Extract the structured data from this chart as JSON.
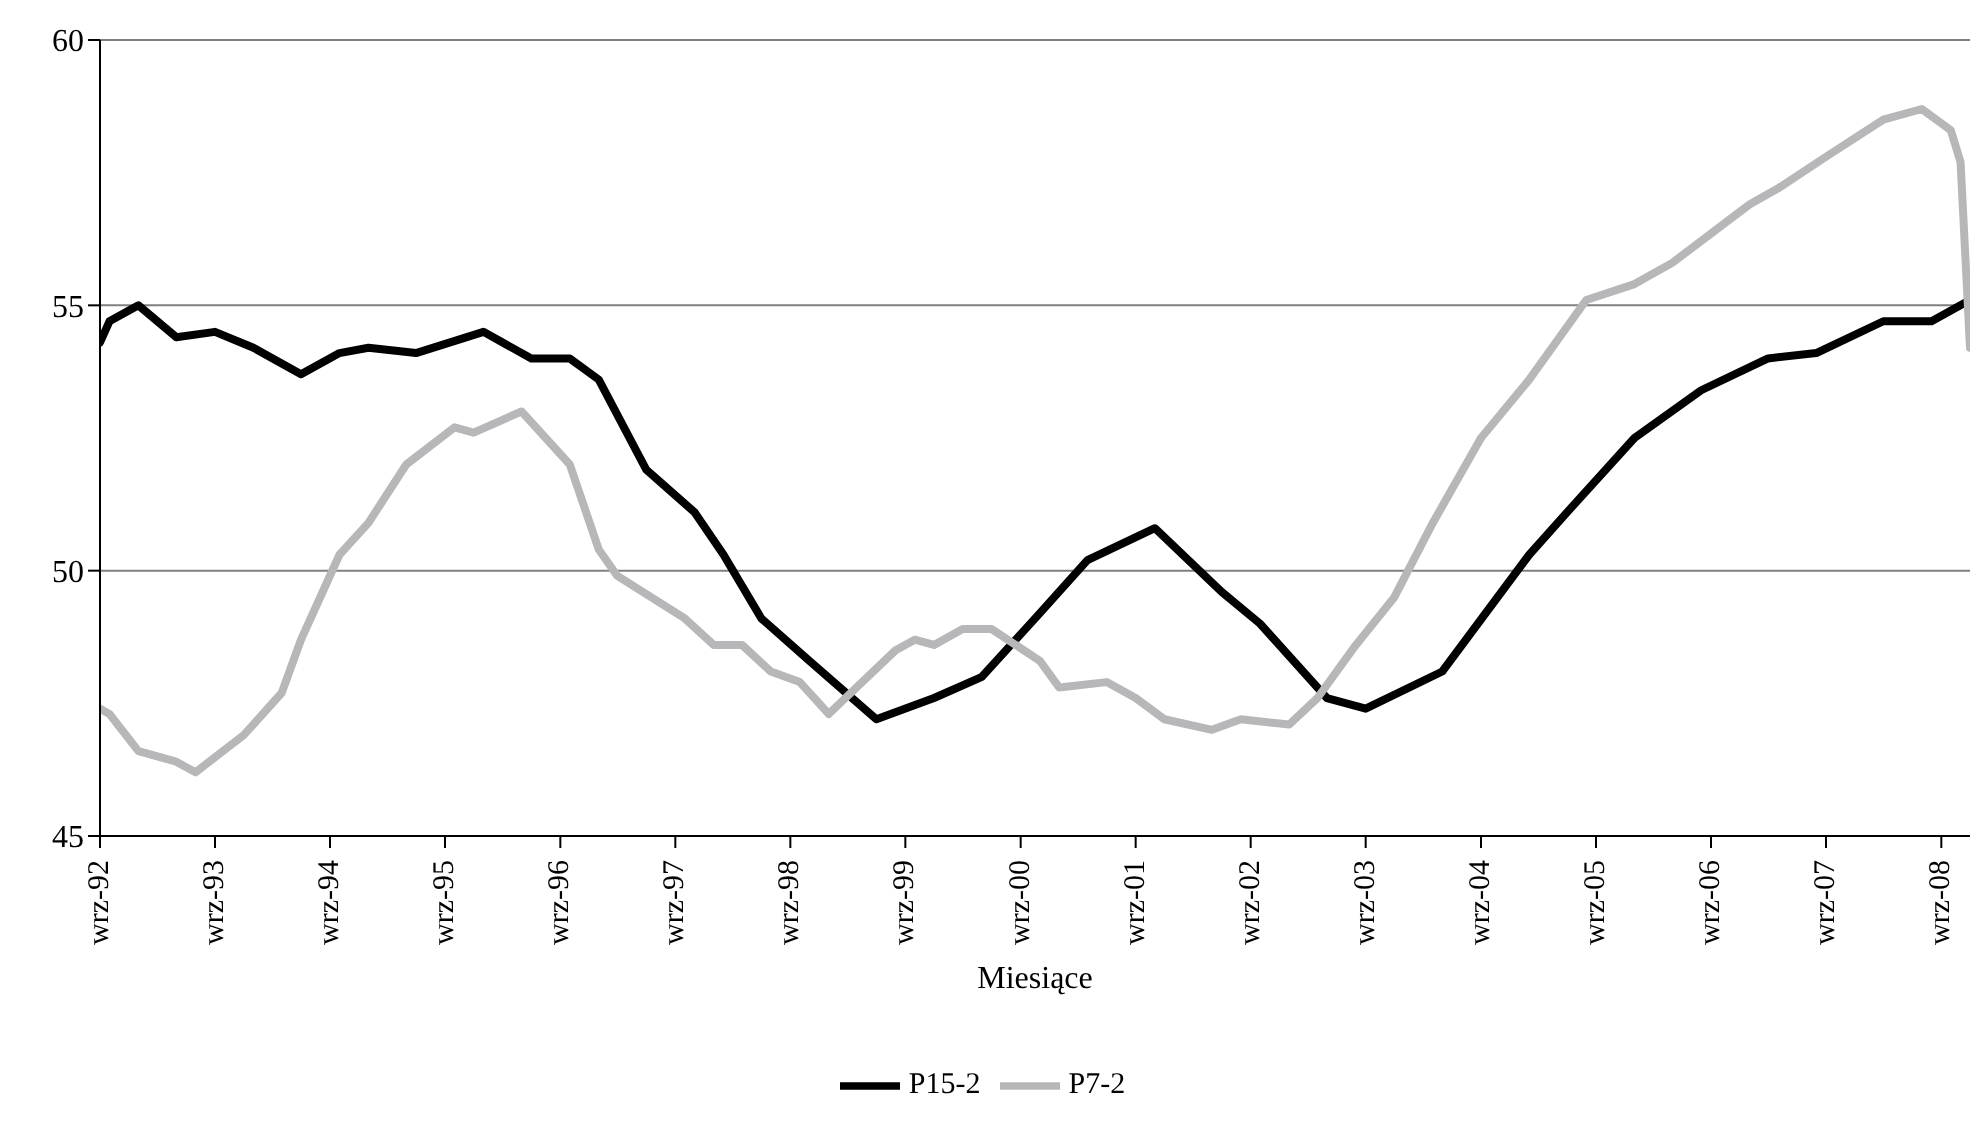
{
  "chart_data": {
    "type": "line",
    "xlabel": "Miesiące",
    "xlim": [
      "1992-09",
      "2008-12"
    ],
    "xticks": [
      {
        "value": "1992-09",
        "label": "wrz-92"
      },
      {
        "value": "1993-09",
        "label": "wrz-93"
      },
      {
        "value": "1994-09",
        "label": "wrz-94"
      },
      {
        "value": "1995-09",
        "label": "wrz-95"
      },
      {
        "value": "1996-09",
        "label": "wrz-96"
      },
      {
        "value": "1997-09",
        "label": "wrz-97"
      },
      {
        "value": "1998-09",
        "label": "wrz-98"
      },
      {
        "value": "1999-09",
        "label": "wrz-99"
      },
      {
        "value": "2000-09",
        "label": "wrz-00"
      },
      {
        "value": "2001-09",
        "label": "wrz-01"
      },
      {
        "value": "2002-09",
        "label": "wrz-02"
      },
      {
        "value": "2003-09",
        "label": "wrz-03"
      },
      {
        "value": "2004-09",
        "label": "wrz-04"
      },
      {
        "value": "2005-09",
        "label": "wrz-05"
      },
      {
        "value": "2006-09",
        "label": "wrz-06"
      },
      {
        "value": "2007-09",
        "label": "wrz-07"
      },
      {
        "value": "2008-09",
        "label": "wrz-08"
      }
    ],
    "ylim": [
      45,
      60
    ],
    "yticks": [
      45,
      50,
      55,
      60
    ],
    "grid": "y",
    "legend": "bottom",
    "marker": "none",
    "line_style": "solid",
    "series": [
      {
        "name": "P15-2",
        "color": "#000000",
        "x": [
          "1992-09",
          "1992-10",
          "1993-01",
          "1993-05",
          "1993-09",
          "1994-01",
          "1994-06",
          "1994-10",
          "1995-01",
          "1995-06",
          "1996-01",
          "1996-06",
          "1996-10",
          "1997-01",
          "1997-06",
          "1997-11",
          "1998-02",
          "1998-06",
          "1998-11",
          "1999-06",
          "1999-12",
          "2000-05",
          "2000-11",
          "2001-04",
          "2001-11",
          "2002-06",
          "2002-10",
          "2003-05",
          "2003-09",
          "2004-05",
          "2005-02",
          "2005-06",
          "2006-01",
          "2006-08",
          "2007-03",
          "2007-08",
          "2008-03",
          "2008-08",
          "2008-12"
        ],
        "values": [
          54.3,
          54.7,
          55.0,
          54.4,
          54.5,
          54.2,
          53.7,
          54.1,
          54.2,
          54.1,
          54.5,
          54.0,
          54.0,
          53.6,
          51.9,
          51.1,
          50.3,
          49.1,
          48.3,
          47.2,
          47.6,
          48.0,
          49.2,
          50.2,
          50.8,
          49.6,
          49.0,
          47.6,
          47.4,
          48.1,
          50.3,
          51.1,
          52.5,
          53.4,
          54.0,
          54.1,
          54.7,
          54.7,
          55.1
        ]
      },
      {
        "name": "P7-2",
        "color": "#b7b7b9",
        "x": [
          "1992-09",
          "1992-10",
          "1993-01",
          "1993-05",
          "1993-07",
          "1993-12",
          "1994-04",
          "1994-06",
          "1994-10",
          "1995-01",
          "1995-05",
          "1995-10",
          "1995-12",
          "1996-05",
          "1996-10",
          "1997-01",
          "1997-03",
          "1997-10",
          "1998-01",
          "1998-04",
          "1998-07",
          "1998-10",
          "1999-01",
          "1999-08",
          "1999-10",
          "1999-12",
          "2000-03",
          "2000-06",
          "2000-11",
          "2001-01",
          "2001-06",
          "2001-09",
          "2001-12",
          "2002-05",
          "2002-08",
          "2003-01",
          "2003-04",
          "2003-08",
          "2003-12",
          "2004-04",
          "2004-09",
          "2005-02",
          "2005-08",
          "2006-01",
          "2006-05",
          "2007-01",
          "2007-04",
          "2007-09",
          "2008-03",
          "2008-07",
          "2008-10",
          "2008-11",
          "2008-12"
        ],
        "values": [
          47.4,
          47.3,
          46.6,
          46.4,
          46.2,
          46.9,
          47.7,
          48.7,
          50.3,
          50.9,
          52.0,
          52.7,
          52.6,
          53.0,
          52.0,
          50.4,
          49.9,
          49.1,
          48.6,
          48.6,
          48.1,
          47.9,
          47.3,
          48.5,
          48.7,
          48.6,
          48.9,
          48.9,
          48.3,
          47.8,
          47.9,
          47.6,
          47.2,
          47.0,
          47.2,
          47.1,
          47.6,
          48.6,
          49.5,
          50.9,
          52.5,
          53.6,
          55.1,
          55.4,
          55.8,
          56.9,
          57.2,
          57.8,
          58.5,
          58.7,
          58.3,
          57.7,
          54.2
        ]
      }
    ]
  }
}
